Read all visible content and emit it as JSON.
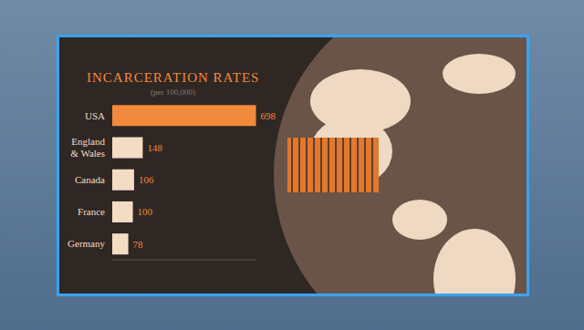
{
  "chart_data": {
    "type": "bar",
    "title": "INCARCERATION RATES",
    "subtitle": "(per 100,000)",
    "orientation": "horizontal",
    "categories": [
      "USA",
      "England & Wales",
      "Canada",
      "France",
      "Germany"
    ],
    "values": [
      698,
      148,
      106,
      100,
      78
    ],
    "colors": [
      "#f08a3c",
      "#f4dcc4",
      "#f4dcc4",
      "#f4dcc4",
      "#f4dcc4"
    ],
    "xlim": [
      0,
      700
    ],
    "xticks": [],
    "tick_labels": false,
    "data_labels": true,
    "grid": false
  }
}
